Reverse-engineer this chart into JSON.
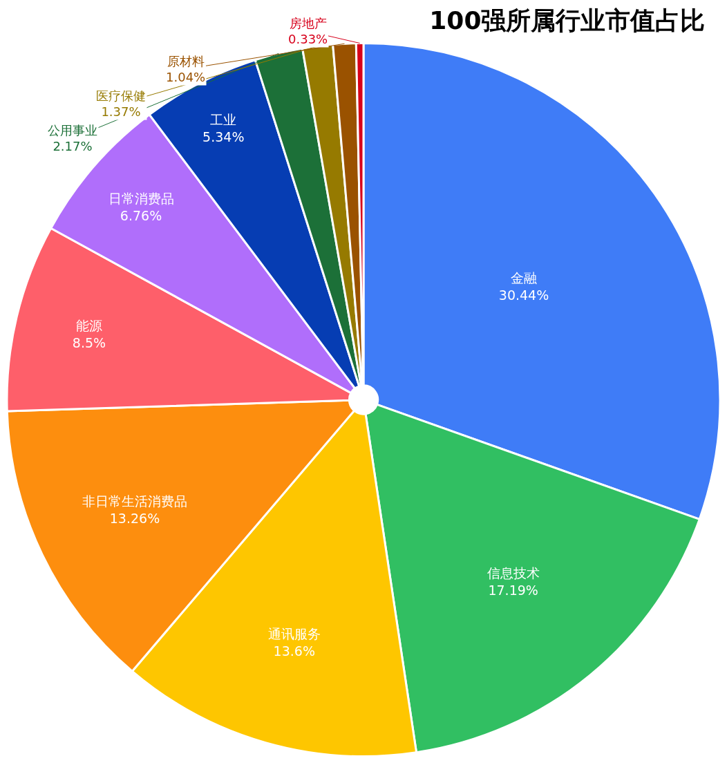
{
  "chart_data": {
    "type": "pie",
    "title": "100强所属行业市值占比",
    "categories": [
      "金融",
      "信息技术",
      "通讯服务",
      "非日常生活消费品",
      "能源",
      "日常消费品",
      "工业",
      "公用事业",
      "医疗保健",
      "原材料",
      "房地产"
    ],
    "values": [
      30.44,
      17.19,
      13.6,
      13.26,
      8.5,
      6.76,
      5.34,
      2.17,
      1.37,
      1.04,
      0.33
    ],
    "value_labels": [
      "30.44%",
      "17.19%",
      "13.6%",
      "13.26%",
      "8.5%",
      "6.76%",
      "5.34%",
      "2.17%",
      "1.37%",
      "1.04%",
      "0.33%"
    ],
    "colors": [
      "#3f7cf7",
      "#31bf62",
      "#fec600",
      "#fd8e0e",
      "#fe5f6a",
      "#b06efb",
      "#063db3",
      "#1c7038",
      "#967a00",
      "#9a5200",
      "#d7001b"
    ],
    "legend": false
  }
}
